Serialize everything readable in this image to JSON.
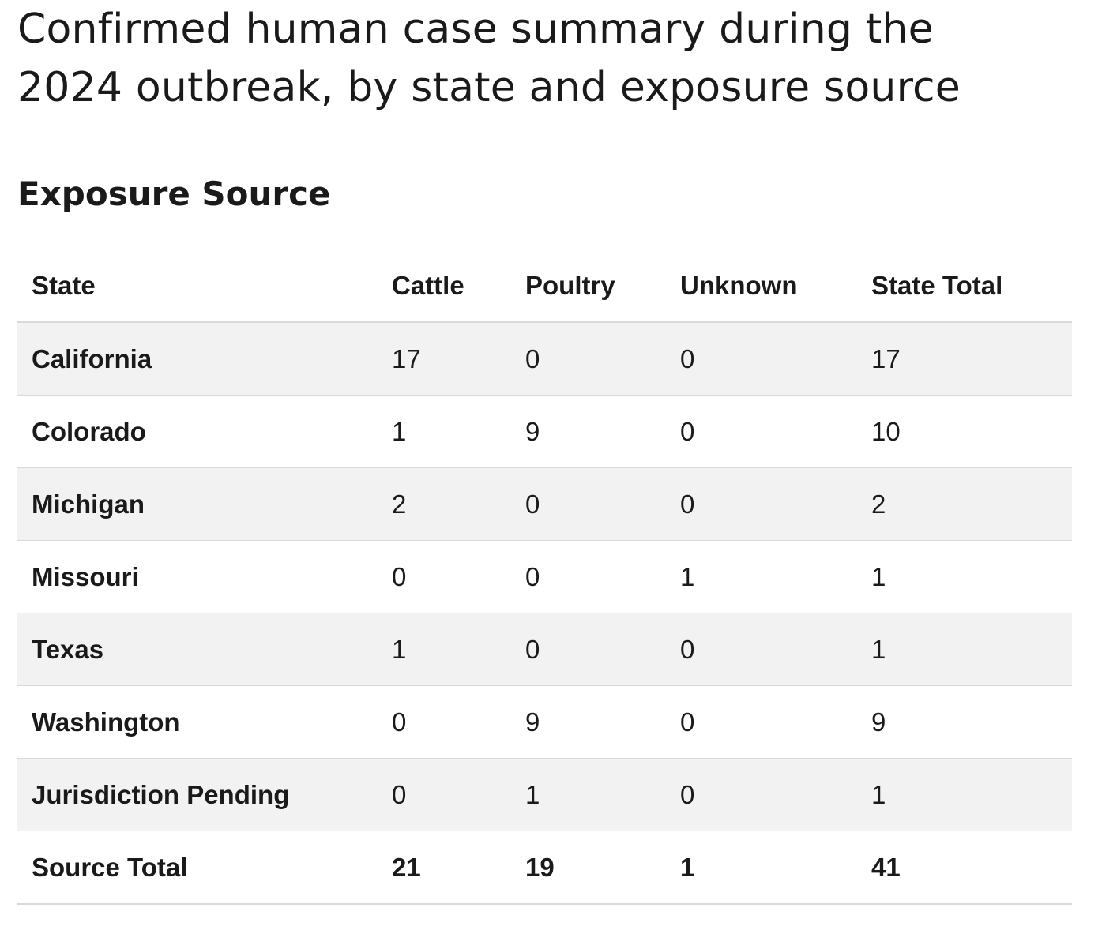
{
  "title": "Confirmed human case summary during the 2024 outbreak, by state and exposure source",
  "section_heading": "Exposure Source",
  "table": {
    "columns": [
      "State",
      "Cattle",
      "Poultry",
      "Unknown",
      "State Total"
    ],
    "rows": [
      {
        "state": "California",
        "cattle": "17",
        "poultry": "0",
        "unknown": "0",
        "total": "17"
      },
      {
        "state": "Colorado",
        "cattle": "1",
        "poultry": "9",
        "unknown": "0",
        "total": "10"
      },
      {
        "state": "Michigan",
        "cattle": "2",
        "poultry": "0",
        "unknown": "0",
        "total": "2"
      },
      {
        "state": "Missouri",
        "cattle": "0",
        "poultry": "0",
        "unknown": "1",
        "total": "1"
      },
      {
        "state": "Texas",
        "cattle": "1",
        "poultry": "0",
        "unknown": "0",
        "total": "1"
      },
      {
        "state": "Washington",
        "cattle": "0",
        "poultry": "9",
        "unknown": "0",
        "total": "9"
      },
      {
        "state": "Jurisdiction Pending",
        "cattle": "0",
        "poultry": "1",
        "unknown": "0",
        "total": "1"
      }
    ],
    "total_row": {
      "label": "Source Total",
      "cattle": "21",
      "poultry": "19",
      "unknown": "1",
      "total": "41"
    }
  },
  "colors": {
    "text": "#1a1a1a",
    "row_shade": "#f2f2f2",
    "rule": "#d9d9d9",
    "background": "#ffffff"
  }
}
